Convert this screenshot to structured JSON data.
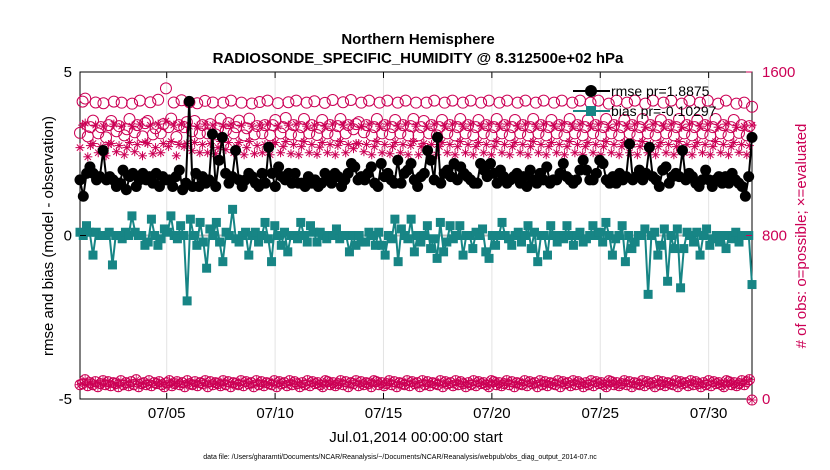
{
  "chart_data": {
    "type": "line",
    "title": "Northern Hemisphere",
    "subtitle": "RADIOSONDE_SPECIFIC_HUMIDITY @ 8.312500e+02 hPa",
    "xlabel": "Jul.01,2014 00:00:00 start",
    "ylabel": "rmse and bias (model - observation)",
    "y2label": "# of obs: o=possible; ×=evaluated",
    "xlim": [
      1,
      32
    ],
    "ylim": [
      -5,
      5
    ],
    "y2lim": [
      0,
      1600
    ],
    "x_ticks": [
      5,
      10,
      15,
      20,
      25,
      30
    ],
    "x_tick_labels": [
      "07/05",
      "07/10",
      "07/15",
      "07/20",
      "07/25",
      "07/30"
    ],
    "y_ticks": [
      -5,
      0,
      5
    ],
    "y_tick_labels": [
      "-5",
      "0",
      "5"
    ],
    "y2_ticks": [
      0,
      800,
      1600
    ],
    "y2_tick_labels": [
      "0",
      "800",
      "1600"
    ],
    "footer": "data file: /Users/gharamti/Documents/NCAR/Reanalysis/~/Documents/NCAR/Reanalysis/webpub/obs_diag_output_2014-07.nc",
    "legend": [
      "rmse pr=1.8875",
      "bias pr=-0.10297"
    ],
    "colors": {
      "rmse": "#000000",
      "bias": "#178585",
      "obs": "#cc0055",
      "zero": "#b8b8b8"
    },
    "series": [
      {
        "name": "rmse pr=1.8875",
        "axis": "left",
        "values": [
          1.7,
          1.2,
          1.9,
          2.1,
          1.9,
          1.7,
          1.8,
          2.6,
          1.7,
          1.8,
          1.7,
          1.5,
          1.6,
          2.0,
          1.4,
          1.8,
          1.9,
          1.5,
          1.7,
          1.9,
          1.7,
          1.8,
          1.6,
          1.9,
          1.5,
          1.8,
          1.7,
          1.7,
          1.5,
          1.8,
          2.0,
          1.4,
          1.6,
          4.1,
          1.5,
          1.9,
          1.5,
          1.8,
          1.6,
          1.7,
          3.1,
          1.5,
          2.3,
          3.0,
          1.9,
          1.6,
          1.8,
          2.6,
          1.7,
          1.5,
          1.7,
          1.9,
          1.8,
          1.6,
          1.5,
          1.9,
          1.6,
          2.7,
          1.9,
          1.5,
          2.1,
          1.8,
          1.7,
          1.9,
          1.6,
          1.9,
          1.6,
          1.6,
          1.5,
          1.8,
          1.6,
          1.7,
          1.5,
          1.6,
          1.9,
          1.8,
          1.6,
          1.9,
          1.8,
          1.5,
          1.7,
          1.9,
          2.2,
          2.1,
          1.7,
          1.8,
          1.7,
          1.9,
          2.1,
          1.6,
          1.5,
          2.2,
          1.8,
          1.9,
          1.7,
          1.6,
          2.3,
          1.6,
          1.9,
          2.0,
          2.2,
          1.7,
          1.5,
          1.8,
          1.9,
          2.6,
          2.3,
          1.7,
          3.0,
          1.6,
          1.9,
          2.0,
          1.8,
          2.2,
          1.7,
          2.1,
          1.9,
          1.8,
          1.7,
          1.6,
          1.6,
          2.2,
          2.0,
          1.8,
          2.2,
          1.9,
          1.6,
          2.0,
          1.8,
          1.6,
          1.7,
          1.8,
          1.9,
          1.6,
          1.8,
          1.5,
          2.0,
          1.7,
          1.6,
          1.9,
          1.7,
          2.1,
          1.6,
          1.7,
          1.7,
          1.9,
          2.2,
          1.8,
          1.7,
          1.6,
          1.7,
          2.0,
          2.3,
          2.0,
          1.7,
          1.7,
          1.9,
          2.3,
          2.2,
          1.7,
          1.6,
          1.8,
          1.6,
          1.9,
          1.7,
          1.8,
          2.8,
          1.7,
          1.8,
          2.0,
          1.7,
          1.9,
          2.7,
          1.8,
          1.7,
          1.5,
          2.0,
          2.1,
          1.6,
          1.8,
          1.9,
          1.8,
          2.6,
          1.7,
          1.9,
          1.8,
          1.6,
          1.5,
          1.7,
          2.0,
          1.7,
          1.5,
          1.7,
          1.8,
          1.6,
          1.8,
          1.6,
          1.9,
          1.7,
          1.6,
          1.5,
          1.2,
          1.8,
          3.0
        ]
      },
      {
        "name": "bias pr=-0.10297",
        "axis": "left",
        "values": [
          0.1,
          0.0,
          0.3,
          0.1,
          -0.6,
          0.1,
          0.0,
          0.0,
          0.0,
          0.1,
          -0.9,
          0.0,
          0.0,
          -0.1,
          0.1,
          0.0,
          0.6,
          0.1,
          0.0,
          0.0,
          -0.3,
          -0.2,
          0.5,
          0.0,
          -0.3,
          -0.1,
          0.2,
          0.1,
          0.6,
          0.0,
          -0.1,
          0.3,
          0.0,
          -2.0,
          0.5,
          0.0,
          -0.3,
          0.4,
          -0.2,
          -1.0,
          0.2,
          0.0,
          0.4,
          -0.2,
          -0.8,
          0.1,
          0.0,
          0.8,
          -0.1,
          -0.2,
          0.0,
          0.1,
          -0.6,
          0.0,
          0.1,
          -0.2,
          0.0,
          0.4,
          -0.1,
          -0.8,
          0.3,
          0.0,
          -0.3,
          0.1,
          -0.5,
          0.0,
          0.0,
          -0.1,
          0.4,
          0.0,
          -0.2,
          0.3,
          0.1,
          -0.2,
          0.1,
          0.0,
          -0.1,
          0.0,
          0.0,
          0.2,
          -0.1,
          0.0,
          0.0,
          -0.5,
          0.0,
          -0.3,
          0.0,
          -0.2,
          -0.2,
          0.1,
          0.0,
          -0.3,
          0.1,
          -0.3,
          -0.6,
          0.0,
          -0.1,
          0.5,
          -0.8,
          0.2,
          0.0,
          -0.1,
          0.5,
          -0.5,
          0.0,
          -0.2,
          0.0,
          0.3,
          -0.4,
          -0.1,
          -0.7,
          0.4,
          -0.5,
          -0.2,
          0.3,
          -0.1,
          0.0,
          0.3,
          -0.6,
          0.0,
          0.0,
          -0.4,
          0.1,
          0.0,
          0.2,
          -0.5,
          -0.7,
          0.0,
          -0.3,
          0.0,
          0.4,
          0.0,
          -0.1,
          -0.3,
          0.0,
          0.1,
          -0.2,
          0.0,
          0.3,
          -0.4,
          0.1,
          -0.8,
          0.0,
          0.0,
          -0.6,
          0.3,
          0.0,
          -0.2,
          0.0,
          -0.1,
          0.3,
          0.0,
          -0.3,
          0.0,
          0.1,
          -0.2,
          -0.1,
          0.0,
          0.3,
          0.0,
          0.1,
          -0.2,
          0.4,
          0.0,
          -0.6,
          -0.1,
          0.0,
          0.3,
          -0.8,
          0.0,
          -0.4,
          -0.2,
          0.0,
          0.0,
          0.2,
          -1.8,
          0.0,
          0.1,
          -0.6,
          -0.3,
          0.2,
          -1.4,
          0.0,
          -0.4,
          0.2,
          -1.6,
          -0.4,
          0.1,
          0.0,
          -0.2,
          0.1,
          -0.6,
          0.0,
          0.2,
          -0.3,
          -0.1,
          0.0,
          -0.2,
          0.0,
          -0.4,
          0.0,
          -0.1,
          0.1,
          -0.2,
          0.0,
          0.0,
          0.0,
          -1.5
        ]
      },
      {
        "name": "possible",
        "axis": "right",
        "values": [
          1302,
          1455,
          1470,
          1285,
          1330,
          1362,
          1451,
          1300,
          1330,
          1447,
          1280,
          1340,
          1360,
          1455,
          1310,
          1335,
          1450,
          1290,
          1320,
          1370,
          1445,
          1305,
          1340,
          1460,
          1285,
          1350,
          1360,
          1452,
          1295,
          1325,
          1464,
          1300,
          1345,
          1520,
          1330,
          1372,
          1451,
          1282,
          1340,
          1462,
          1330,
          1355,
          1452,
          1310,
          1360,
          1447,
          1300,
          1340,
          1459,
          1300,
          1345,
          1451,
          1295,
          1325,
          1371,
          1450,
          1315,
          1350,
          1460,
          1300,
          1330,
          1362,
          1450,
          1290,
          1325,
          1372,
          1446,
          1295,
          1335,
          1453,
          1300,
          1340,
          1460,
          1290,
          1340,
          1365,
          1448,
          1300,
          1330,
          1375,
          1452,
          1295,
          1340,
          1460,
          1290,
          1330,
          1370,
          1450,
          1300,
          1340,
          1457,
          1292,
          1327,
          1365,
          1449,
          1300,
          1340,
          1463,
          1290,
          1335,
          1370,
          1452,
          1300,
          1340,
          1463,
          1320,
          1345,
          1355,
          1450,
          1305,
          1340,
          1460,
          1290,
          1330,
          1370,
          1450,
          1300,
          1340,
          1460,
          1295,
          1330,
          1365,
          1450,
          1300,
          1340,
          1460,
          1290,
          1335,
          1370,
          1450,
          1290,
          1330,
          1360,
          1450,
          1300,
          1340,
          1460,
          1290,
          1330,
          1365,
          1450,
          1300,
          1340,
          1460,
          1290,
          1330,
          1370,
          1450,
          1300,
          1340,
          1460,
          1290,
          1330,
          1365,
          1450,
          1300,
          1340,
          1460,
          1290,
          1330,
          1370,
          1450,
          1300,
          1340,
          1460,
          1290,
          1330,
          1365,
          1450,
          1300,
          1340,
          1460,
          1290,
          1330,
          1370,
          1450,
          1300,
          1340,
          1460,
          1290,
          1330,
          1365,
          1450,
          1300,
          1340,
          1460,
          1290,
          1330,
          1370,
          1450,
          1300,
          1340,
          1460,
          1290,
          1330,
          1365,
          1450,
          1300,
          1340,
          1460,
          1290,
          1330,
          1370,
          1445,
          1300,
          1340,
          1460,
          1290,
          1330,
          1365,
          1450,
          1300,
          1340,
          1460,
          1290,
          1330,
          1370,
          1445,
          1300,
          1340,
          1460,
          1290,
          1330,
          1365,
          1450,
          1300,
          1340,
          1460,
          1290,
          1330,
          1370,
          1445,
          1300,
          1340,
          1460,
          1290,
          1330,
          1365,
          1450,
          1300,
          1340,
          1460,
          1290,
          1330,
          1370,
          1445,
          1300,
          1340,
          1460,
          1290,
          1330,
          1365,
          1445,
          1302,
          1340,
          1450,
          1290,
          1335,
          1430
        ]
      },
      {
        "name": "evaluated",
        "axis": "right",
        "values": [
          1230,
          1340,
          1350,
          1185,
          1240,
          1250,
          1340,
          1205,
          1235,
          1335,
          1190,
          1245,
          1250,
          1345,
          1210,
          1240,
          1335,
          1195,
          1230,
          1255,
          1335,
          1210,
          1245,
          1345,
          1190,
          1255,
          1250,
          1340,
          1200,
          1230,
          1345,
          1205,
          1250,
          1360,
          1235,
          1260,
          1340,
          1190,
          1245,
          1345,
          1235,
          1250,
          1335,
          1215,
          1255,
          1335,
          1205,
          1245,
          1345,
          1205,
          1250,
          1340,
          1200,
          1230,
          1260,
          1335,
          1220,
          1255,
          1345,
          1205,
          1235,
          1255,
          1340,
          1195,
          1230,
          1260,
          1335,
          1200,
          1240,
          1340,
          1205,
          1245,
          1345,
          1195,
          1245,
          1255,
          1335,
          1205,
          1235,
          1260,
          1340,
          1200,
          1245,
          1345,
          1195,
          1235,
          1260,
          1335,
          1205,
          1245,
          1340,
          1197,
          1232,
          1255,
          1335,
          1205,
          1245,
          1345,
          1195,
          1240,
          1260,
          1340,
          1205,
          1245,
          1345,
          1225,
          1250,
          1250,
          1335,
          1210,
          1245,
          1345,
          1195,
          1235,
          1260,
          1335,
          1205,
          1245,
          1345,
          1200,
          1235,
          1255,
          1335,
          1205,
          1245,
          1345,
          1195,
          1240,
          1260,
          1335,
          1195,
          1235,
          1250,
          1335,
          1205,
          1245,
          1345,
          1195,
          1235,
          1255,
          1335,
          1205,
          1245,
          1345,
          1195,
          1235,
          1260,
          1335,
          1205,
          1245,
          1345,
          1195,
          1235,
          1255,
          1335,
          1205,
          1245,
          1345,
          1195,
          1235,
          1260,
          1335,
          1205,
          1245,
          1345,
          1195,
          1235,
          1255,
          1335,
          1205,
          1245,
          1345,
          1195,
          1235,
          1260,
          1335,
          1205,
          1245,
          1345,
          1195,
          1235,
          1255,
          1335,
          1205,
          1245,
          1345,
          1195,
          1235,
          1260,
          1335,
          1205,
          1245,
          1345,
          1195,
          1235,
          1255,
          1335,
          1205,
          1245,
          1345,
          1195,
          1235,
          1260,
          1330,
          1205,
          1245,
          1345,
          1195,
          1235,
          1255,
          1335,
          1205,
          1245,
          1345,
          1195,
          1235,
          1260,
          1330,
          1205,
          1245,
          1345,
          1195,
          1235,
          1255,
          1335,
          1205,
          1245,
          1345,
          1195,
          1235,
          1260,
          1330,
          1205,
          1245,
          1345,
          1195,
          1235,
          1255,
          1335,
          1205,
          1245,
          1345,
          1195,
          1235,
          1260,
          1330,
          1205,
          1245,
          1345,
          1195,
          1235,
          1255,
          1330,
          1207,
          1245,
          1335,
          1195,
          1240,
          1340
        ]
      },
      {
        "name": "possible-bottom",
        "axis": "right",
        "values": [
          70,
          75,
          95,
          65,
          80,
          70,
          85,
          60,
          75,
          90,
          70,
          85,
          65,
          80,
          75,
          60,
          90,
          70,
          80,
          65,
          85,
          70,
          95,
          60,
          75,
          80,
          70,
          90,
          65,
          80,
          75,
          85,
          70,
          60,
          80,
          90,
          65,
          75,
          85,
          70,
          80,
          60,
          90,
          75,
          70,
          85,
          65,
          80,
          75,
          90,
          60,
          85,
          70,
          80,
          75,
          65,
          90,
          70,
          85,
          60,
          80,
          75,
          70,
          90,
          65,
          85,
          75,
          80,
          60,
          90,
          70,
          85,
          65,
          80,
          75,
          70,
          90,
          60,
          85,
          75,
          80,
          65,
          90,
          70,
          85,
          75,
          60,
          80,
          70,
          90,
          65,
          85,
          75,
          80,
          70,
          60,
          90,
          85,
          70,
          80,
          65,
          75,
          90,
          70,
          85,
          60,
          80,
          75,
          90,
          65,
          85,
          70,
          80,
          75,
          60,
          90,
          85,
          70,
          80,
          65,
          75,
          90,
          70,
          85,
          60,
          80,
          75,
          70,
          90,
          65,
          85,
          75,
          80,
          60,
          90,
          70,
          85,
          65,
          80,
          75,
          70,
          90,
          60,
          85,
          75,
          80,
          65,
          90,
          70,
          85,
          75,
          60,
          80,
          70,
          90,
          65,
          85,
          75,
          80,
          70,
          60,
          90,
          85,
          70,
          80,
          65,
          75,
          90,
          70,
          85,
          60,
          80,
          75,
          70,
          90,
          65,
          85,
          75,
          80,
          60,
          90,
          70,
          85,
          65,
          80,
          75,
          70,
          90,
          60,
          85,
          75,
          80,
          65,
          90,
          70,
          85,
          75,
          60,
          80,
          70,
          90,
          65,
          85,
          75,
          80,
          70,
          60,
          90,
          85,
          70,
          80,
          65,
          75,
          90,
          70,
          85,
          60,
          80,
          75,
          70,
          90,
          65,
          85,
          75,
          80,
          60,
          90,
          70,
          85,
          65,
          80,
          75,
          70,
          90,
          60,
          85,
          75,
          80,
          65,
          90,
          70,
          85,
          75,
          60,
          80,
          70,
          90,
          65,
          85,
          75,
          80,
          70,
          60,
          90,
          85,
          70,
          80,
          65,
          75,
          90,
          70,
          85,
          95,
          -5
        ]
      }
    ]
  }
}
